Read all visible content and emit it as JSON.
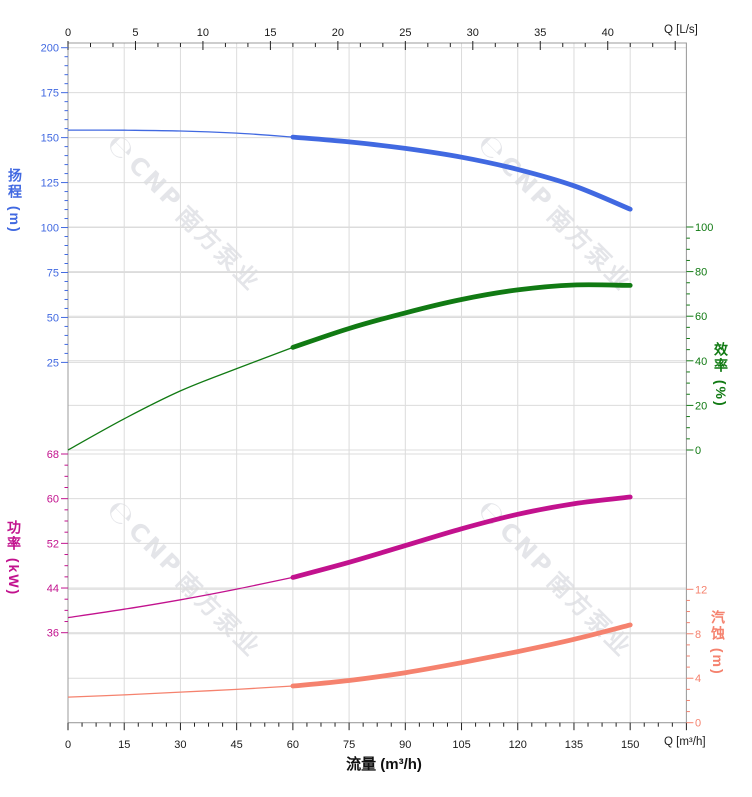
{
  "watermark": {
    "logo_glyph": "℮",
    "brand": "CNP",
    "brand_cn": "南方泵业"
  },
  "chart_data": {
    "type": "line",
    "title": "",
    "x_label_bottom": "流量 (m³/h)",
    "grid": "on",
    "legend": "none",
    "bold_range_q": [
      60,
      150
    ],
    "axes": {
      "flow_bottom": {
        "unit": "Q [m³/h]",
        "min": 0,
        "max": 165,
        "major_step": 15,
        "minors_per_interval": 3,
        "label_max": 150,
        "color": "#1a1a1a"
      },
      "flow_top": {
        "unit": "Q [L/s]",
        "min": 0,
        "max": 45.83,
        "major_step": 5,
        "minors_per_interval": 2,
        "label_max": 40,
        "color": "#1a1a1a"
      },
      "head": {
        "title": "扬程 (m)",
        "min": 25,
        "max": 200,
        "major_step": 25,
        "minor_step": 5,
        "side": "left",
        "color": "#4169E1"
      },
      "efficiency": {
        "title": "效率 (%)",
        "min": 0,
        "max": 100,
        "major_step": 20,
        "minor_step": 5,
        "side": "right",
        "color": "#117a13"
      },
      "power": {
        "title": "功率 (kW)",
        "min": 36,
        "max": 68,
        "major_step": 8,
        "minor_step": 2,
        "side": "left",
        "color": "#C2128E"
      },
      "npsh": {
        "title": "汽蚀 (m)",
        "min": 0,
        "max": 12,
        "major_step": 4,
        "minor_step": 1,
        "side": "right",
        "color": "#F5826E"
      }
    },
    "x": [
      0,
      15,
      30,
      45,
      60,
      75,
      90,
      105,
      120,
      135,
      150
    ],
    "series": [
      {
        "name": "head",
        "axis": "head",
        "color": "#4169E1",
        "values": [
          154.2,
          154.1,
          153.7,
          152.5,
          150.3,
          147.6,
          144.0,
          139.1,
          132.3,
          123.2,
          110.2
        ]
      },
      {
        "name": "efficiency",
        "axis": "efficiency",
        "color": "#117a13",
        "values": [
          0,
          14,
          26.5,
          36.5,
          46,
          54.5,
          61.5,
          67.5,
          71.8,
          74,
          73.8
        ]
      },
      {
        "name": "power",
        "axis": "power",
        "color": "#C2128E",
        "values": [
          38.7,
          40.2,
          41.9,
          43.8,
          45.9,
          48.6,
          51.6,
          54.6,
          57.2,
          59.1,
          60.3
        ]
      },
      {
        "name": "npsh",
        "axis": "npsh",
        "color": "#F5826E",
        "values": [
          2.3,
          2.5,
          2.75,
          3.0,
          3.3,
          3.8,
          4.5,
          5.4,
          6.4,
          7.5,
          8.8
        ]
      }
    ]
  }
}
